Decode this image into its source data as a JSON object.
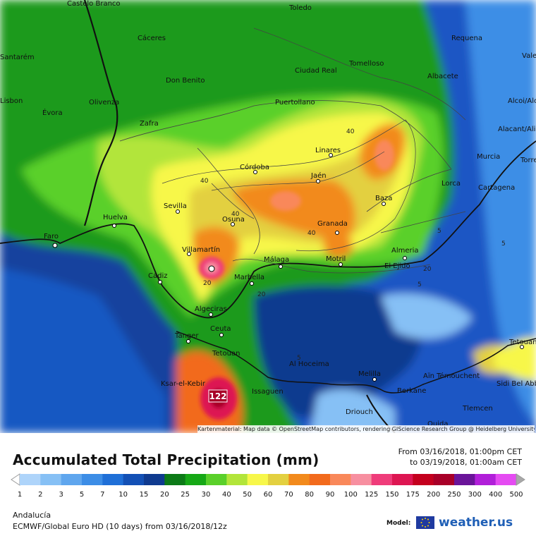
{
  "map": {
    "cities": [
      {
        "name": "Castelo Branco",
        "line2": "Branco"
      },
      {
        "name": "Toledo"
      },
      {
        "name": "Cáceres"
      },
      {
        "name": "Requena"
      },
      {
        "name": "Valencia"
      },
      {
        "name": "Santarém"
      },
      {
        "name": "Tomelloso"
      },
      {
        "name": "Ciudad Real"
      },
      {
        "name": "Don Benito"
      },
      {
        "name": "Albacete"
      },
      {
        "name": "Puertollano"
      },
      {
        "name": "Olivenza"
      },
      {
        "name": "Alcoi/Alcoy"
      },
      {
        "name": "Lisbon"
      },
      {
        "name": "Évora"
      },
      {
        "name": "Zafra"
      },
      {
        "name": "Alacant/Alicante"
      },
      {
        "name": "Linares"
      },
      {
        "name": "Murcia"
      },
      {
        "name": "Córdoba"
      },
      {
        "name": "Torrevieja"
      },
      {
        "name": "Jaén"
      },
      {
        "name": "Lorca"
      },
      {
        "name": "Cartagena"
      },
      {
        "name": "Sevilla"
      },
      {
        "name": "Baza"
      },
      {
        "name": "Huelva"
      },
      {
        "name": "Osuna"
      },
      {
        "name": "Granada"
      },
      {
        "name": "Faro"
      },
      {
        "name": "Almeria"
      },
      {
        "name": "Villamartín"
      },
      {
        "name": "Málaga"
      },
      {
        "name": "Motril"
      },
      {
        "name": "El Ejido"
      },
      {
        "name": "Cádiz"
      },
      {
        "name": "Marbella"
      },
      {
        "name": "Algeciras"
      },
      {
        "name": "Tanger"
      },
      {
        "name": "Ceuta"
      },
      {
        "name": "Tetouan"
      },
      {
        "name": "Oran"
      },
      {
        "name": "Al Hoceima"
      },
      {
        "name": "Melilla"
      },
      {
        "name": "Aïn Témouchent"
      },
      {
        "name": "Sidi Bel Abbès"
      },
      {
        "name": "Ksar-el-Kebir"
      },
      {
        "name": "Issaguen"
      },
      {
        "name": "Berkane"
      },
      {
        "name": "Driouch"
      },
      {
        "name": "Tlemcen"
      },
      {
        "name": "Oujda"
      }
    ],
    "contour_labels": [
      "40",
      "40",
      "40",
      "40",
      "20",
      "20",
      "5",
      "5",
      "5",
      "5",
      "20"
    ],
    "max_value_label": "122",
    "credit": "Kartenmaterial: Map data © OpenStreetMap contributors, rendering GIScience Research Group @ Heidelberg University"
  },
  "legend": {
    "title": "Accumulated Total Precipitation (mm)",
    "range_from": "From 03/16/2018, 01:00pm CET",
    "range_to": "to 03/19/2018, 01:00am CET",
    "ticks": [
      "1",
      "2",
      "3",
      "5",
      "7",
      "10",
      "15",
      "20",
      "25",
      "30",
      "40",
      "50",
      "60",
      "70",
      "80",
      "90",
      "100",
      "125",
      "150",
      "175",
      "200",
      "250",
      "300",
      "400",
      "500"
    ],
    "colors": [
      "#aed4fa",
      "#86c0f5",
      "#5fa6ee",
      "#3c8de6",
      "#1f6fd7",
      "#1350b5",
      "#0f3a8f",
      "#0c7a17",
      "#16a816",
      "#5ad02a",
      "#b2e53a",
      "#f7f74a",
      "#e3d040",
      "#f28a1c",
      "#f26a1c",
      "#f9885a",
      "#f78fa0",
      "#ef3c7a",
      "#dd1652",
      "#c4001e",
      "#a80028",
      "#6a1499",
      "#b11fd9",
      "#e54bf2",
      "#f29bf7",
      "#f7d0f9",
      "#f2f2f2",
      "#cfcfcf",
      "#a8a8a8"
    ],
    "region": "Andalucía",
    "model_line": "ECMWF/Global Euro HD (10 days) from 03/16/2018/12z",
    "model_label": "Model:",
    "brand": "weather.us"
  }
}
